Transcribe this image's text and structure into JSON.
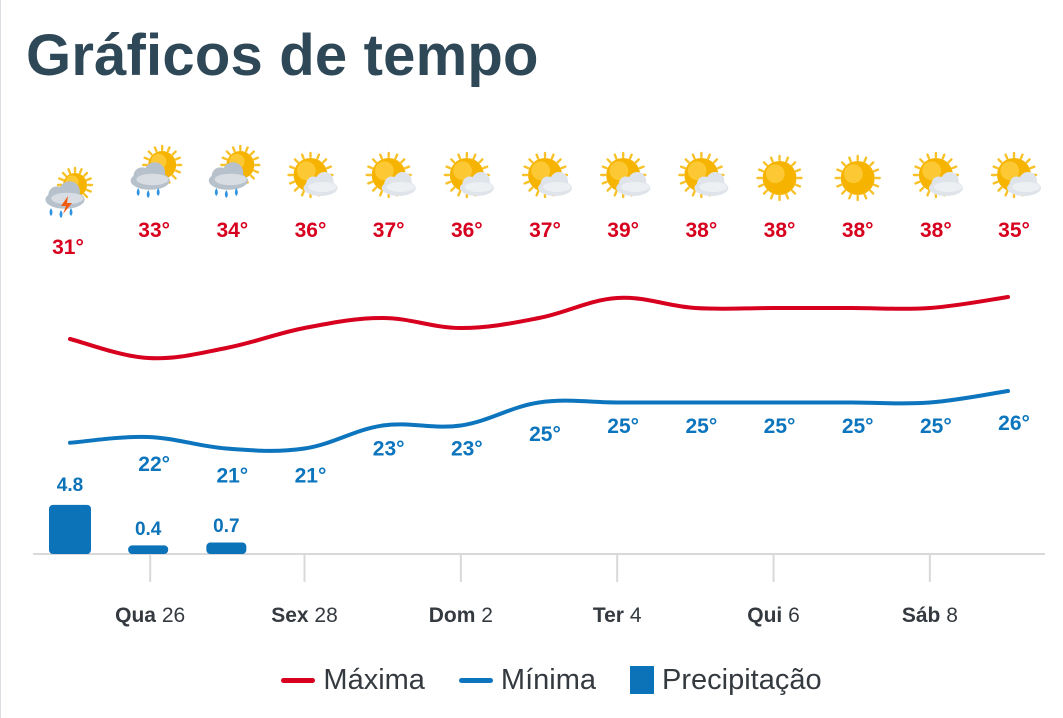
{
  "page": {
    "title": "Gráficos de tempo"
  },
  "colors": {
    "max": "#d7001e",
    "min": "#0c75bd",
    "precip": "#0d73b8",
    "sun": "#f6b400",
    "cloud": "#cfd6de",
    "rain": "#2f93e0",
    "bolt": "#f05a12",
    "axis": "#d9d9d9",
    "text": "#343a40",
    "title": "#2f4858"
  },
  "legend": {
    "max_label": "Máxima",
    "min_label": "Mínima",
    "precip_label": "Precipitação"
  },
  "chart_data": {
    "type": "line",
    "title": "Gráficos de tempo",
    "x_labels": [
      {
        "bold": "Qua",
        "num": "26"
      },
      {
        "bold": "Sex",
        "num": "28"
      },
      {
        "bold": "Dom",
        "num": "2"
      },
      {
        "bold": "Ter",
        "num": "4"
      },
      {
        "bold": "Qui",
        "num": "6"
      },
      {
        "bold": "Sáb",
        "num": "8"
      }
    ],
    "days": 13,
    "icons": [
      "thunder-rain-icon",
      "sun-cloud-rain-icon",
      "sun-cloud-rain-icon",
      "partly-cloudy-icon",
      "partly-cloudy-icon",
      "partly-cloudy-icon",
      "partly-cloudy-icon",
      "partly-cloudy-icon",
      "partly-cloudy-icon",
      "sun-icon",
      "sun-icon",
      "partly-cloudy-icon",
      "partly-cloudy-icon"
    ],
    "series": [
      {
        "name": "Máxima",
        "unit": "°",
        "values": [
          31,
          33,
          34,
          36,
          37,
          36,
          37,
          39,
          38,
          38,
          38,
          38,
          35
        ]
      },
      {
        "name": "Mínima",
        "unit": "°",
        "values": [
          null,
          22,
          21,
          21,
          23,
          23,
          25,
          25,
          25,
          25,
          25,
          25,
          26
        ]
      },
      {
        "name": "Precipitação",
        "type": "bar",
        "labels": [
          "4.8",
          "0.4",
          "0.7"
        ],
        "values": [
          4.8,
          0.4,
          0.7,
          0,
          0,
          0,
          0,
          0,
          0,
          0,
          0,
          0,
          0
        ]
      }
    ],
    "grid": false,
    "legend_position": "bottom"
  }
}
